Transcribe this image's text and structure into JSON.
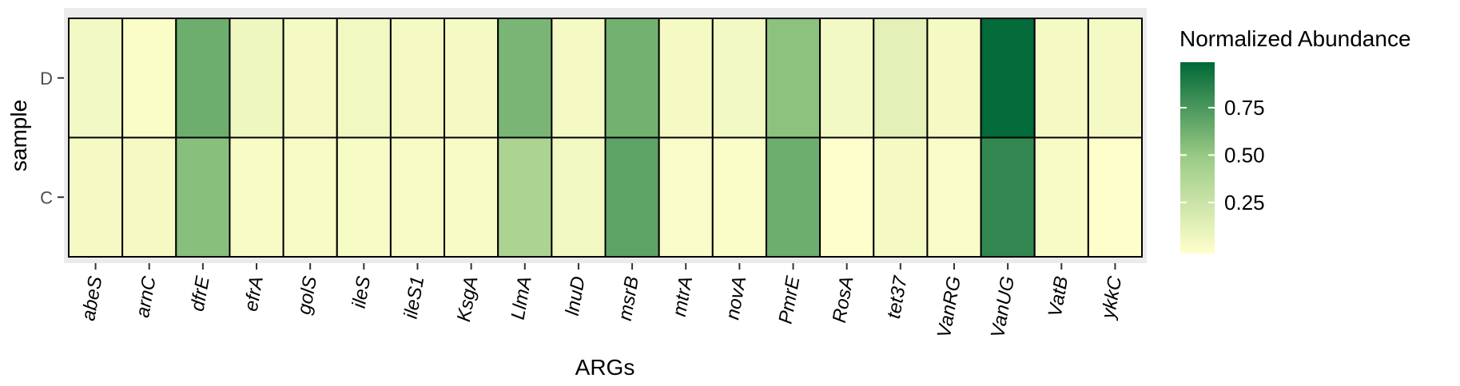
{
  "chart_data": {
    "type": "heatmap",
    "xlabel": "ARGs",
    "ylabel": "sample",
    "x_categories": [
      "abeS",
      "arnC",
      "dfrE",
      "efrA",
      "golS",
      "ileS",
      "ileS1",
      "KsgA",
      "LlmA",
      "lnuD",
      "msrB",
      "mtrA",
      "novA",
      "PmrE",
      "RosA",
      "tet37",
      "VanRG",
      "VanUG",
      "VatB",
      "ykkC"
    ],
    "y_categories": [
      "D",
      "C"
    ],
    "values": {
      "D": [
        0.06,
        0.02,
        0.65,
        0.08,
        0.05,
        0.07,
        0.05,
        0.05,
        0.61,
        0.05,
        0.63,
        0.05,
        0.06,
        0.55,
        0.06,
        0.14,
        0.05,
        0.99,
        0.05,
        0.05
      ],
      "C": [
        0.05,
        0.05,
        0.56,
        0.04,
        0.04,
        0.04,
        0.04,
        0.04,
        0.42,
        0.07,
        0.7,
        0.03,
        0.02,
        0.65,
        0.01,
        0.05,
        0.03,
        0.84,
        0.04,
        0.01
      ]
    },
    "color_scale": {
      "low": "#ffffcc",
      "mid": "#9ccb86",
      "high": "#006837",
      "range": [
        0.0,
        1.0
      ]
    },
    "legend": {
      "title": "Normalized Abundance",
      "ticks": [
        0.25,
        0.5,
        0.75
      ],
      "tick_labels": [
        "0.25",
        "0.50",
        "0.75"
      ],
      "placement": "right"
    },
    "panel_background": "#ebebeb",
    "grid": true
  }
}
